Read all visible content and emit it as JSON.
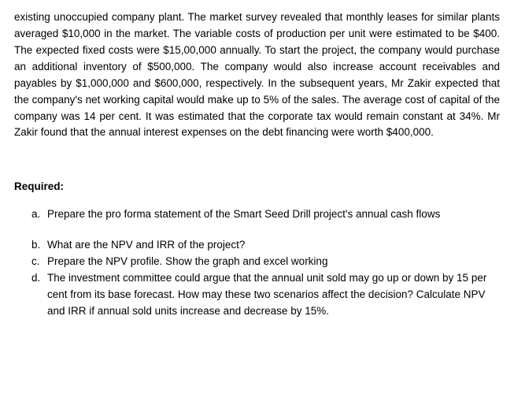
{
  "intro_text": "existing unoccupied company plant. The market survey revealed that monthly leases for similar plants averaged $10,000 in the market. The variable costs of production per unit were estimated to be $400. The expected fixed costs were $15,00,000 annually. To start the project, the company would purchase an additional inventory of $500,000. The company would also increase account receivables and payables by $1,000,000 and $600,000, respectively. In the subsequent years, Mr Zakir expected that the company's net working capital would make up to 5% of the sales. The average cost of capital of the company was 14 per cent. It was estimated that the corporate tax would remain constant at 34%. Mr Zakir found that the annual interest expenses on the debt financing were worth $400,000.",
  "required_label": "Required:",
  "questions": {
    "a": {
      "marker": "a.",
      "text": "Prepare the pro forma statement of the Smart Seed Drill project's annual cash flows"
    },
    "b": {
      "marker": "b.",
      "text": "What are the NPV and IRR of the project?"
    },
    "c": {
      "marker": "c.",
      "text": "Prepare the NPV profile. Show the graph and excel working"
    },
    "d": {
      "marker": "d.",
      "text": "The investment committee could argue that the annual unit sold may go up or down by 15 per cent from its base forecast. How may these two scenarios affect the decision? Calculate NPV and IRR if annual sold units increase and decrease by 15%."
    }
  }
}
